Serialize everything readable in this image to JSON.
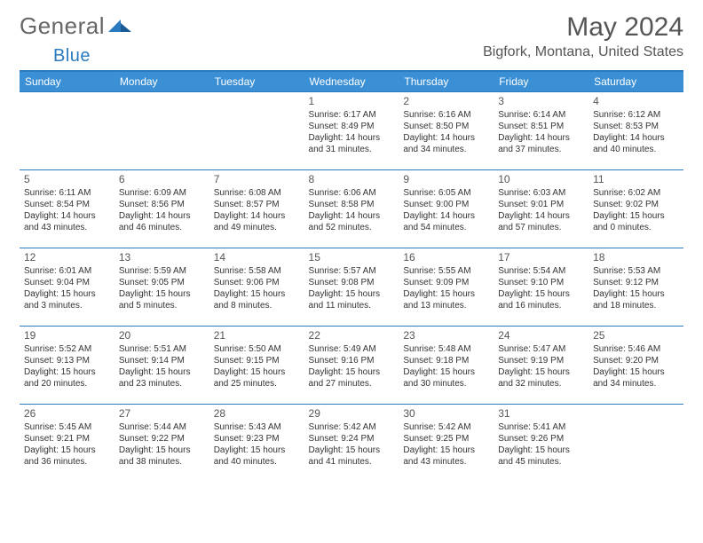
{
  "logo": {
    "text_a": "General",
    "text_b": "Blue"
  },
  "title": "May 2024",
  "location": "Bigfork, Montana, United States",
  "colors": {
    "header_bg": "#3b8fd4",
    "divider": "#2a7abf",
    "text": "#333333",
    "muted": "#666666"
  },
  "fonts": {
    "title_size": 30,
    "location_size": 16,
    "dayhead_size": 12,
    "daynum_size": 12,
    "info_size": 10
  },
  "day_headers": [
    "Sunday",
    "Monday",
    "Tuesday",
    "Wednesday",
    "Thursday",
    "Friday",
    "Saturday"
  ],
  "weeks": [
    [
      null,
      null,
      null,
      {
        "n": "1",
        "sr": "6:17 AM",
        "ss": "8:49 PM",
        "d": "14 hours and 31 minutes."
      },
      {
        "n": "2",
        "sr": "6:16 AM",
        "ss": "8:50 PM",
        "d": "14 hours and 34 minutes."
      },
      {
        "n": "3",
        "sr": "6:14 AM",
        "ss": "8:51 PM",
        "d": "14 hours and 37 minutes."
      },
      {
        "n": "4",
        "sr": "6:12 AM",
        "ss": "8:53 PM",
        "d": "14 hours and 40 minutes."
      }
    ],
    [
      {
        "n": "5",
        "sr": "6:11 AM",
        "ss": "8:54 PM",
        "d": "14 hours and 43 minutes."
      },
      {
        "n": "6",
        "sr": "6:09 AM",
        "ss": "8:56 PM",
        "d": "14 hours and 46 minutes."
      },
      {
        "n": "7",
        "sr": "6:08 AM",
        "ss": "8:57 PM",
        "d": "14 hours and 49 minutes."
      },
      {
        "n": "8",
        "sr": "6:06 AM",
        "ss": "8:58 PM",
        "d": "14 hours and 52 minutes."
      },
      {
        "n": "9",
        "sr": "6:05 AM",
        "ss": "9:00 PM",
        "d": "14 hours and 54 minutes."
      },
      {
        "n": "10",
        "sr": "6:03 AM",
        "ss": "9:01 PM",
        "d": "14 hours and 57 minutes."
      },
      {
        "n": "11",
        "sr": "6:02 AM",
        "ss": "9:02 PM",
        "d": "15 hours and 0 minutes."
      }
    ],
    [
      {
        "n": "12",
        "sr": "6:01 AM",
        "ss": "9:04 PM",
        "d": "15 hours and 3 minutes."
      },
      {
        "n": "13",
        "sr": "5:59 AM",
        "ss": "9:05 PM",
        "d": "15 hours and 5 minutes."
      },
      {
        "n": "14",
        "sr": "5:58 AM",
        "ss": "9:06 PM",
        "d": "15 hours and 8 minutes."
      },
      {
        "n": "15",
        "sr": "5:57 AM",
        "ss": "9:08 PM",
        "d": "15 hours and 11 minutes."
      },
      {
        "n": "16",
        "sr": "5:55 AM",
        "ss": "9:09 PM",
        "d": "15 hours and 13 minutes."
      },
      {
        "n": "17",
        "sr": "5:54 AM",
        "ss": "9:10 PM",
        "d": "15 hours and 16 minutes."
      },
      {
        "n": "18",
        "sr": "5:53 AM",
        "ss": "9:12 PM",
        "d": "15 hours and 18 minutes."
      }
    ],
    [
      {
        "n": "19",
        "sr": "5:52 AM",
        "ss": "9:13 PM",
        "d": "15 hours and 20 minutes."
      },
      {
        "n": "20",
        "sr": "5:51 AM",
        "ss": "9:14 PM",
        "d": "15 hours and 23 minutes."
      },
      {
        "n": "21",
        "sr": "5:50 AM",
        "ss": "9:15 PM",
        "d": "15 hours and 25 minutes."
      },
      {
        "n": "22",
        "sr": "5:49 AM",
        "ss": "9:16 PM",
        "d": "15 hours and 27 minutes."
      },
      {
        "n": "23",
        "sr": "5:48 AM",
        "ss": "9:18 PM",
        "d": "15 hours and 30 minutes."
      },
      {
        "n": "24",
        "sr": "5:47 AM",
        "ss": "9:19 PM",
        "d": "15 hours and 32 minutes."
      },
      {
        "n": "25",
        "sr": "5:46 AM",
        "ss": "9:20 PM",
        "d": "15 hours and 34 minutes."
      }
    ],
    [
      {
        "n": "26",
        "sr": "5:45 AM",
        "ss": "9:21 PM",
        "d": "15 hours and 36 minutes."
      },
      {
        "n": "27",
        "sr": "5:44 AM",
        "ss": "9:22 PM",
        "d": "15 hours and 38 minutes."
      },
      {
        "n": "28",
        "sr": "5:43 AM",
        "ss": "9:23 PM",
        "d": "15 hours and 40 minutes."
      },
      {
        "n": "29",
        "sr": "5:42 AM",
        "ss": "9:24 PM",
        "d": "15 hours and 41 minutes."
      },
      {
        "n": "30",
        "sr": "5:42 AM",
        "ss": "9:25 PM",
        "d": "15 hours and 43 minutes."
      },
      {
        "n": "31",
        "sr": "5:41 AM",
        "ss": "9:26 PM",
        "d": "15 hours and 45 minutes."
      },
      null
    ]
  ],
  "labels": {
    "sunrise": "Sunrise:",
    "sunset": "Sunset:",
    "daylight": "Daylight:"
  }
}
